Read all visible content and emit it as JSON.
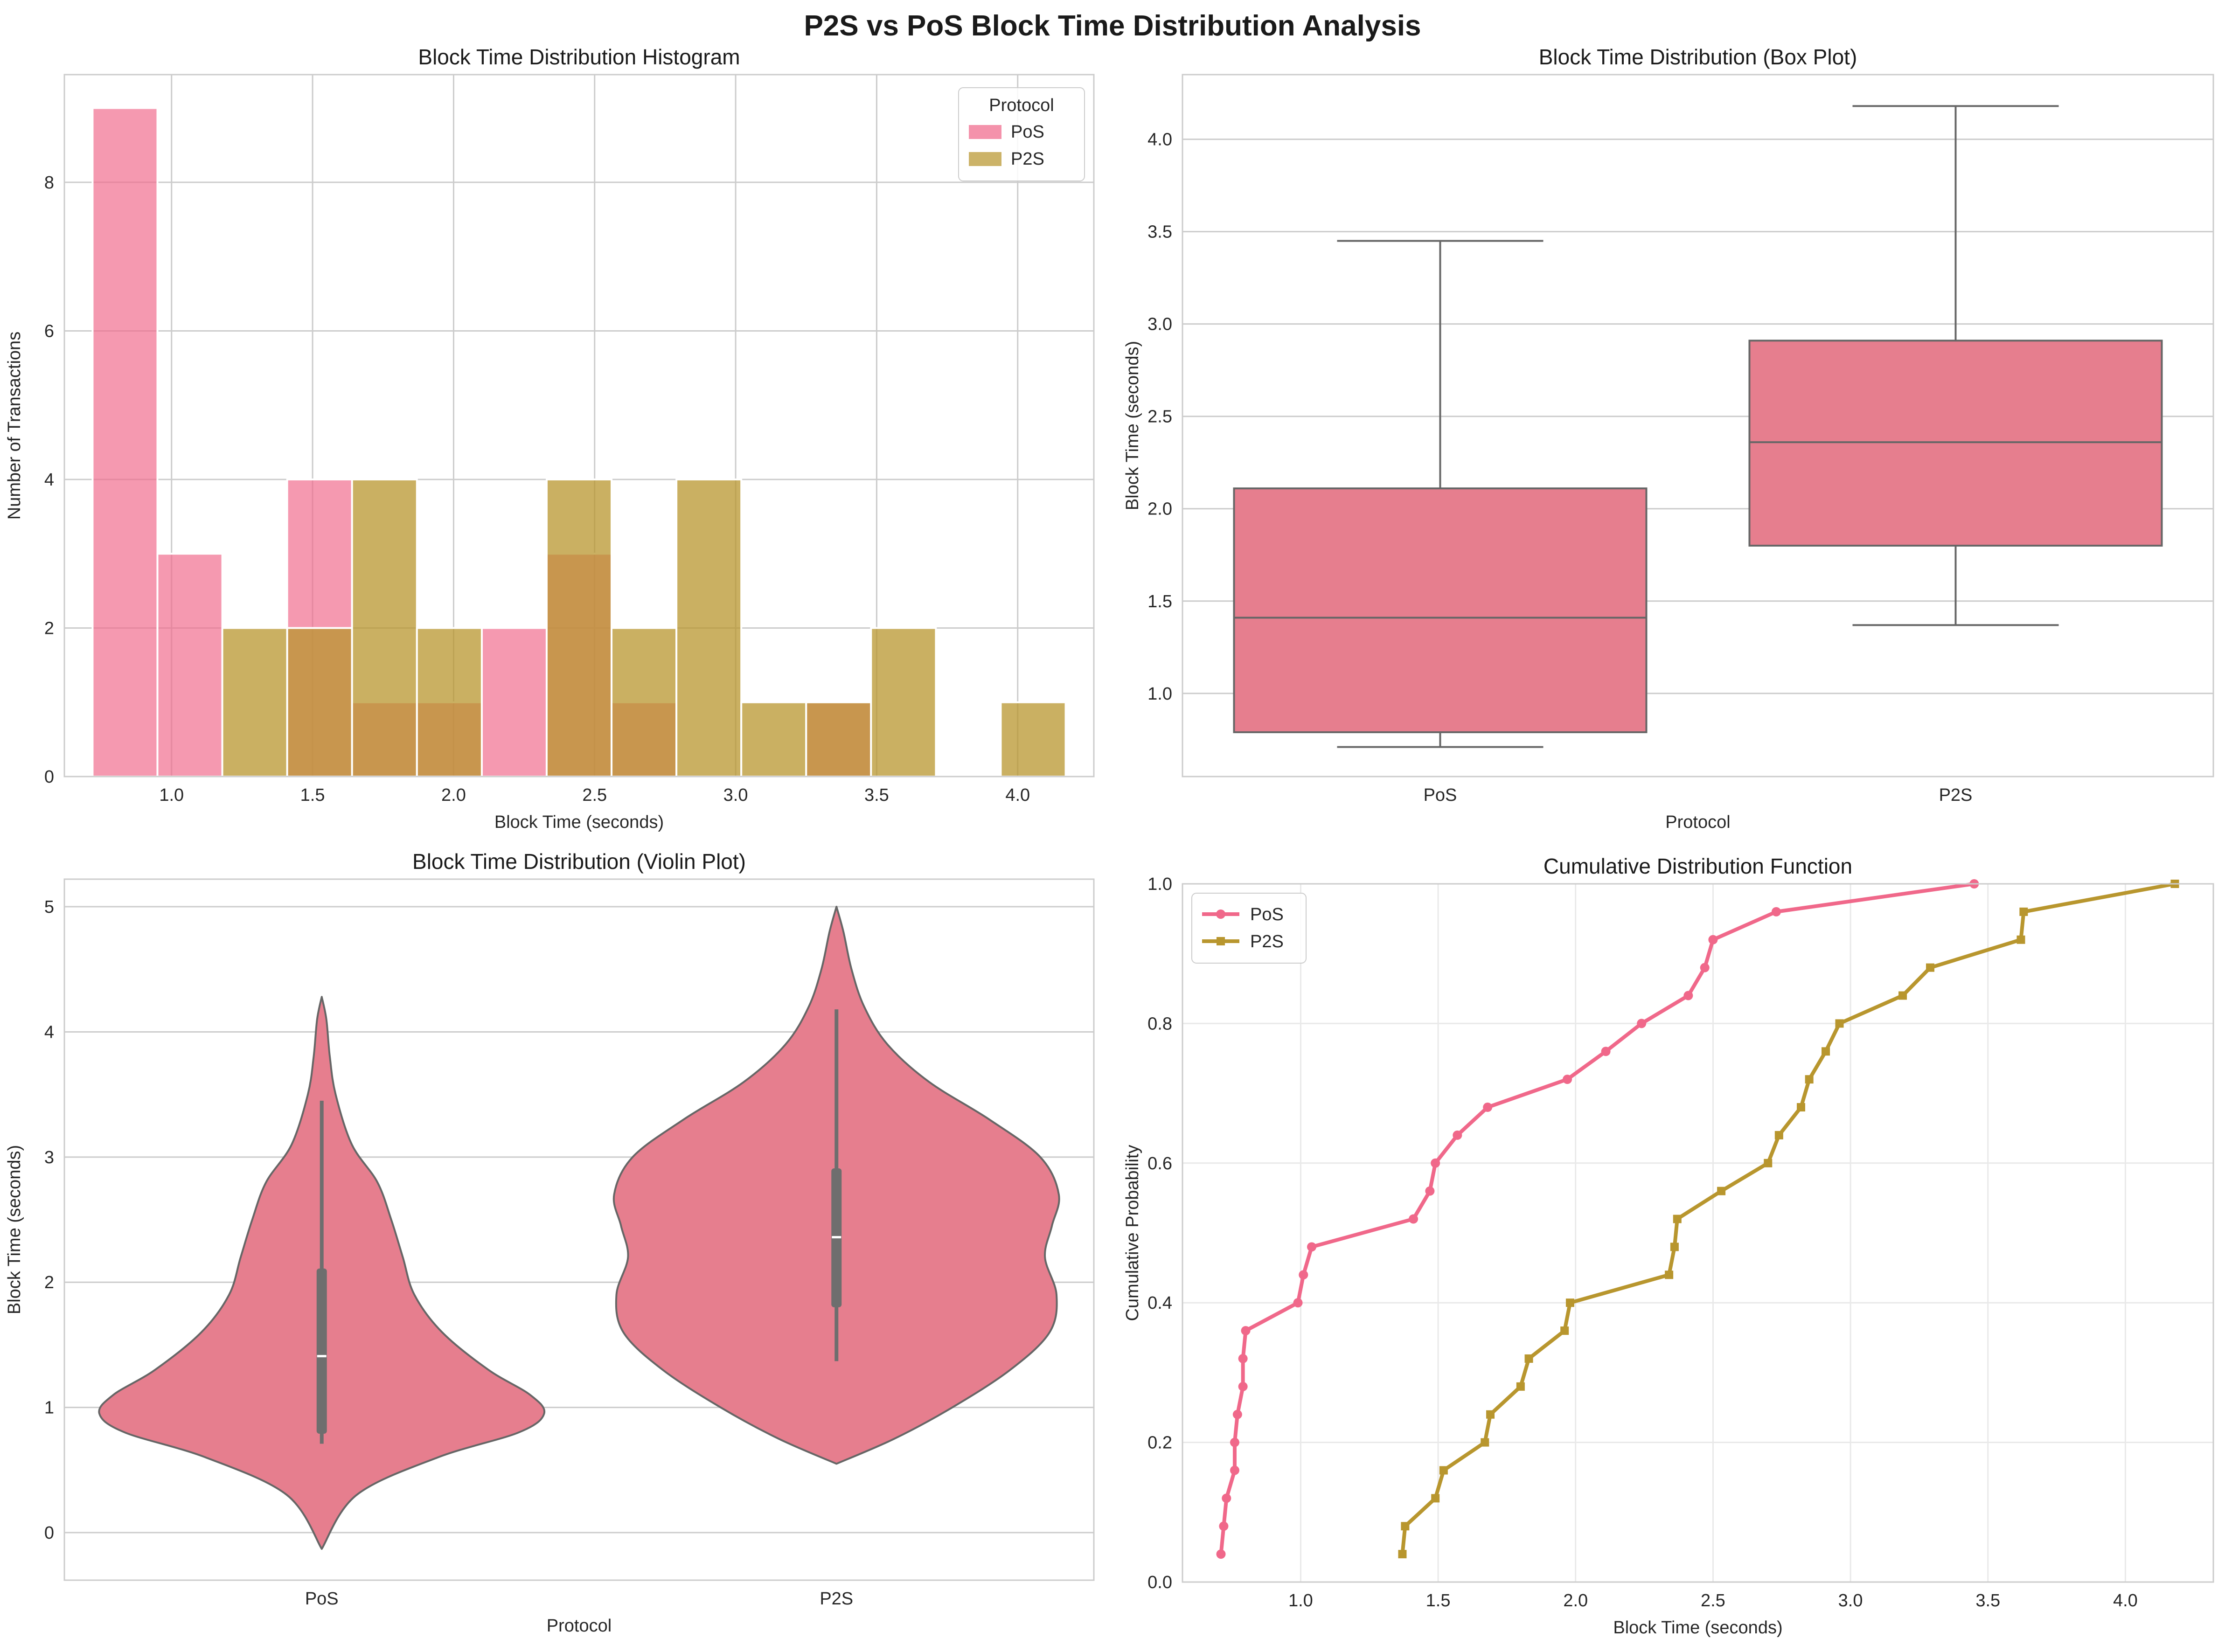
{
  "title": "P2S vs PoS Block Time Distribution Analysis",
  "colors": {
    "pos": "#f0688a",
    "p2s": "#b8962e",
    "box_fill": "#e67e8e",
    "line_gray": "#666666",
    "grid": "#cccccc"
  },
  "chart_data": [
    {
      "type": "bar",
      "subtype": "histogram",
      "title": "Block Time Distribution Histogram",
      "xlabel": "Block Time (seconds)",
      "ylabel": "Number of Transactions",
      "xlim": [
        0.62,
        4.27
      ],
      "ylim": [
        0,
        9.45
      ],
      "xticks": [
        "1.0",
        "1.5",
        "2.0",
        "2.5",
        "3.0",
        "3.5",
        "4.0"
      ],
      "xtick_values": [
        1.0,
        1.5,
        2.0,
        2.5,
        3.0,
        3.5,
        4.0
      ],
      "yticks": [
        "0",
        "2",
        "4",
        "6",
        "8"
      ],
      "ytick_values": [
        0,
        2,
        4,
        6,
        8
      ],
      "bin_edges": [
        0.72,
        0.95,
        1.18,
        1.41,
        1.64,
        1.87,
        2.1,
        2.33,
        2.56,
        2.79,
        3.02,
        3.25,
        3.48,
        3.71,
        3.94,
        4.17
      ],
      "legend_title": "Protocol",
      "legend_position": "top-right",
      "series": [
        {
          "name": "PoS",
          "color": "#f0688a",
          "values": [
            9,
            3,
            0,
            4,
            1,
            1,
            2,
            3,
            1,
            0,
            0,
            1,
            0,
            0,
            0
          ]
        },
        {
          "name": "P2S",
          "color": "#b8962e",
          "values": [
            0,
            0,
            2,
            2,
            4,
            2,
            0,
            4,
            2,
            4,
            1,
            1,
            2,
            0,
            1
          ]
        }
      ]
    },
    {
      "type": "box",
      "title": "Block Time Distribution (Box Plot)",
      "xlabel": "Protocol",
      "ylabel": "Block Time (seconds)",
      "ylim": [
        0.55,
        4.35
      ],
      "yticks": [
        "1.0",
        "1.5",
        "2.0",
        "2.5",
        "3.0",
        "3.5",
        "4.0"
      ],
      "ytick_values": [
        1.0,
        1.5,
        2.0,
        2.5,
        3.0,
        3.5,
        4.0
      ],
      "categories": [
        "PoS",
        "P2S"
      ],
      "boxes": [
        {
          "name": "PoS",
          "whisker_low": 0.71,
          "q1": 0.79,
          "median": 1.41,
          "q3": 2.11,
          "whisker_high": 3.45
        },
        {
          "name": "P2S",
          "whisker_low": 1.37,
          "q1": 1.8,
          "median": 2.36,
          "q3": 2.91,
          "whisker_high": 4.18
        }
      ]
    },
    {
      "type": "violin",
      "title": "Block Time Distribution (Violin Plot)",
      "xlabel": "Protocol",
      "ylabel": "Block Time (seconds)",
      "ylim": [
        -0.38,
        5.22
      ],
      "yticks": [
        "0",
        "1",
        "2",
        "3",
        "4",
        "5"
      ],
      "ytick_values": [
        0,
        1,
        2,
        3,
        4,
        5
      ],
      "categories": [
        "PoS",
        "P2S"
      ],
      "violins": [
        {
          "name": "PoS",
          "whisker_low": 0.71,
          "q1": 0.79,
          "median": 1.41,
          "q3": 2.11,
          "whisker_high": 3.45,
          "profile_y": [
            -0.13,
            0.3,
            0.6,
            0.8,
            0.95,
            1.1,
            1.3,
            1.6,
            1.9,
            2.2,
            2.5,
            2.8,
            3.1,
            3.5,
            3.8,
            4.1,
            4.28
          ],
          "profile_w": [
            0.0,
            0.15,
            0.5,
            0.85,
            0.96,
            0.9,
            0.72,
            0.52,
            0.4,
            0.35,
            0.3,
            0.24,
            0.13,
            0.06,
            0.035,
            0.02,
            0.0
          ]
        },
        {
          "name": "P2S",
          "whisker_low": 1.37,
          "q1": 1.8,
          "median": 2.36,
          "q3": 2.91,
          "whisker_high": 4.18,
          "profile_y": [
            0.55,
            0.75,
            1.0,
            1.3,
            1.6,
            1.9,
            2.2,
            2.45,
            2.7,
            3.0,
            3.3,
            3.6,
            3.9,
            4.2,
            4.5,
            4.8,
            5.0
          ],
          "profile_w": [
            0.0,
            0.25,
            0.5,
            0.75,
            0.92,
            0.95,
            0.9,
            0.93,
            0.96,
            0.88,
            0.66,
            0.4,
            0.22,
            0.12,
            0.065,
            0.03,
            0.0
          ]
        }
      ]
    },
    {
      "type": "line",
      "title": "Cumulative Distribution Function",
      "xlabel": "Block Time (seconds)",
      "ylabel": "Cumulative Probability",
      "xlim": [
        0.57,
        4.32
      ],
      "ylim": [
        0,
        1
      ],
      "xticks": [
        "1.0",
        "1.5",
        "2.0",
        "2.5",
        "3.0",
        "3.5",
        "4.0"
      ],
      "xtick_values": [
        1.0,
        1.5,
        2.0,
        2.5,
        3.0,
        3.5,
        4.0
      ],
      "yticks": [
        "0.0",
        "0.2",
        "0.4",
        "0.6",
        "0.8",
        "1.0"
      ],
      "ytick_values": [
        0.0,
        0.2,
        0.4,
        0.6,
        0.8,
        1.0
      ],
      "grid": true,
      "legend_position": "top-left",
      "series": [
        {
          "name": "PoS",
          "color": "#f0688a",
          "marker": "circle",
          "x": [
            0.71,
            0.72,
            0.73,
            0.76,
            0.76,
            0.77,
            0.79,
            0.79,
            0.8,
            0.99,
            1.01,
            1.04,
            1.41,
            1.47,
            1.49,
            1.57,
            1.68,
            1.97,
            2.11,
            2.24,
            2.41,
            2.47,
            2.5,
            2.73,
            3.45
          ],
          "y": [
            0.04,
            0.08,
            0.12,
            0.16,
            0.2,
            0.24,
            0.28,
            0.32,
            0.36,
            0.4,
            0.44,
            0.48,
            0.52,
            0.56,
            0.6,
            0.64,
            0.68,
            0.72,
            0.76,
            0.8,
            0.84,
            0.88,
            0.92,
            0.96,
            1.0
          ]
        },
        {
          "name": "P2S",
          "color": "#b8962e",
          "marker": "square",
          "x": [
            1.37,
            1.38,
            1.49,
            1.52,
            1.67,
            1.69,
            1.8,
            1.83,
            1.96,
            1.98,
            2.34,
            2.36,
            2.37,
            2.53,
            2.7,
            2.74,
            2.82,
            2.85,
            2.91,
            2.96,
            3.19,
            3.29,
            3.62,
            3.63,
            4.18
          ],
          "y": [
            0.04,
            0.08,
            0.12,
            0.16,
            0.2,
            0.24,
            0.28,
            0.32,
            0.36,
            0.4,
            0.44,
            0.48,
            0.52,
            0.56,
            0.6,
            0.64,
            0.68,
            0.72,
            0.76,
            0.8,
            0.84,
            0.88,
            0.92,
            0.96,
            1.0
          ]
        }
      ]
    }
  ]
}
